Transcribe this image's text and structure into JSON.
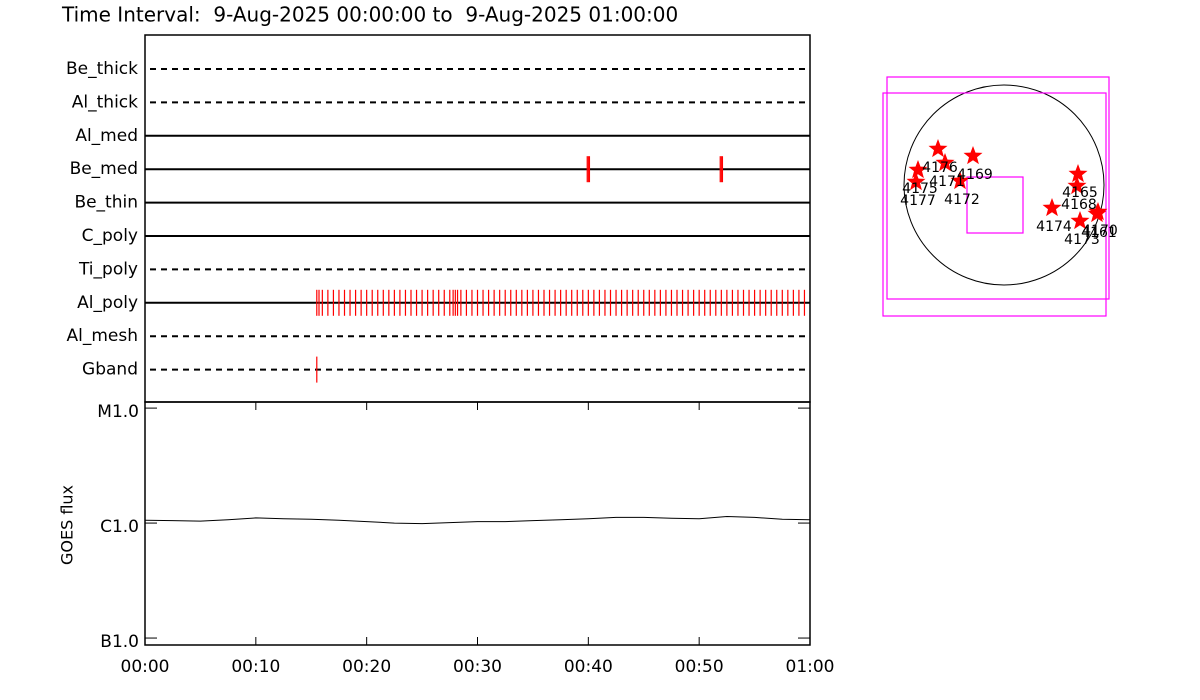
{
  "title": "Time Interval:  9-Aug-2025 00:00:00 to  9-Aug-2025 01:00:00",
  "chart_data": [
    {
      "type": "timeline",
      "mark_color": "#ff0000",
      "xlim": [
        0,
        60
      ],
      "rows": [
        {
          "name": "Be_thick",
          "style": "dashed",
          "times": []
        },
        {
          "name": "Al_thick",
          "style": "dashed",
          "times": []
        },
        {
          "name": "Al_med",
          "style": "solid",
          "times": []
        },
        {
          "name": "Be_med",
          "style": "solid",
          "times": [
            39.9,
            40.0,
            40.1,
            51.9,
            52.0,
            52.1
          ]
        },
        {
          "name": "Be_thin",
          "style": "solid",
          "times": []
        },
        {
          "name": "C_poly",
          "style": "solid",
          "times": []
        },
        {
          "name": "Ti_poly",
          "style": "dashed",
          "times": []
        },
        {
          "name": "Al_poly",
          "style": "solid",
          "times": [
            15.5,
            15.7,
            16,
            16.5,
            17,
            17.5,
            18,
            18.5,
            19,
            19.5,
            20,
            20.5,
            21,
            21.5,
            22,
            22.5,
            23,
            23.5,
            24,
            24.5,
            25,
            25.5,
            26,
            26.5,
            27,
            27.5,
            27.8,
            28,
            28.2,
            28.5,
            29,
            29.5,
            30,
            30.5,
            31,
            31.5,
            32,
            32.5,
            33,
            33.5,
            34,
            34.5,
            35,
            35.5,
            36,
            36.5,
            37,
            37.5,
            38,
            38.5,
            39,
            39.5,
            40,
            40.5,
            41,
            41.5,
            42,
            42.5,
            43,
            43.5,
            44,
            44.5,
            45,
            45.5,
            46,
            46.5,
            47,
            47.5,
            48,
            48.5,
            49,
            49.5,
            50,
            50.5,
            51,
            51.5,
            52,
            52.5,
            53,
            53.5,
            54,
            54.5,
            55,
            55.5,
            56,
            56.5,
            57,
            57.5,
            58,
            58.5,
            59,
            59.5
          ]
        },
        {
          "name": "Al_mesh",
          "style": "dashed",
          "times": []
        },
        {
          "name": "Gband",
          "style": "dashed",
          "times": [
            15.5
          ]
        }
      ]
    },
    {
      "type": "line",
      "y_label": "GOES flux",
      "log_scale": true,
      "color": "#000000",
      "xlim": [
        0,
        60
      ],
      "ylim": [
        8.7e-08,
        1.13e-05
      ],
      "xticks": [
        {
          "value": 0,
          "label": "00:00"
        },
        {
          "value": 10,
          "label": "00:10"
        },
        {
          "value": 20,
          "label": "00:20"
        },
        {
          "value": 30,
          "label": "00:30"
        },
        {
          "value": 40,
          "label": "00:40"
        },
        {
          "value": 50,
          "label": "00:50"
        },
        {
          "value": 60,
          "label": "01:00"
        }
      ],
      "yticks": [
        {
          "value": 1e-05,
          "label": "M1.0"
        },
        {
          "value": 1e-06,
          "label": "C1.0"
        },
        {
          "value": 1e-07,
          "label": "B1.0"
        }
      ],
      "x": [
        0,
        2.5,
        5,
        7.5,
        10,
        12.5,
        15,
        17.5,
        20,
        22.5,
        25,
        27.5,
        30,
        32.5,
        35,
        37.5,
        40,
        42.5,
        45,
        47.5,
        50,
        52.5,
        55,
        57.5,
        60
      ],
      "values": [
        1.06e-06,
        1.05e-06,
        1.04e-06,
        1.07e-06,
        1.11e-06,
        1.09e-06,
        1.08e-06,
        1.06e-06,
        1.03e-06,
        1e-06,
        9.9e-07,
        1.01e-06,
        1.03e-06,
        1.03e-06,
        1.05e-06,
        1.07e-06,
        1.09e-06,
        1.12e-06,
        1.12e-06,
        1.1e-06,
        1.09e-06,
        1.14e-06,
        1.12e-06,
        1.08e-06,
        1.07e-06
      ]
    },
    {
      "type": "scatter",
      "color": "#ff0000",
      "fov_color": "#ff00ff",
      "xlim": [
        -1.25,
        1.25
      ],
      "ylim": [
        -1.4,
        1.4
      ],
      "labels": [
        "4176",
        "4171",
        "4175",
        "4177",
        "4172",
        "4169",
        "4165",
        "4168",
        "4174",
        "4173",
        "4170",
        "4161"
      ],
      "x": [
        -0.66,
        -0.59,
        -0.86,
        -0.88,
        -0.44,
        -0.31,
        0.74,
        0.73,
        0.48,
        0.76,
        0.94,
        0.93
      ],
      "y": [
        0.36,
        0.22,
        0.15,
        0.03,
        0.04,
        0.29,
        0.11,
        -0.01,
        -0.23,
        -0.36,
        -0.27,
        -0.29
      ],
      "fov": [
        [
          -1.17,
          -1.14,
          1.05,
          1.08
        ],
        [
          -1.21,
          -1.31,
          1.02,
          0.92
        ],
        [
          -0.37,
          -0.48,
          0.19,
          0.08
        ]
      ]
    }
  ]
}
